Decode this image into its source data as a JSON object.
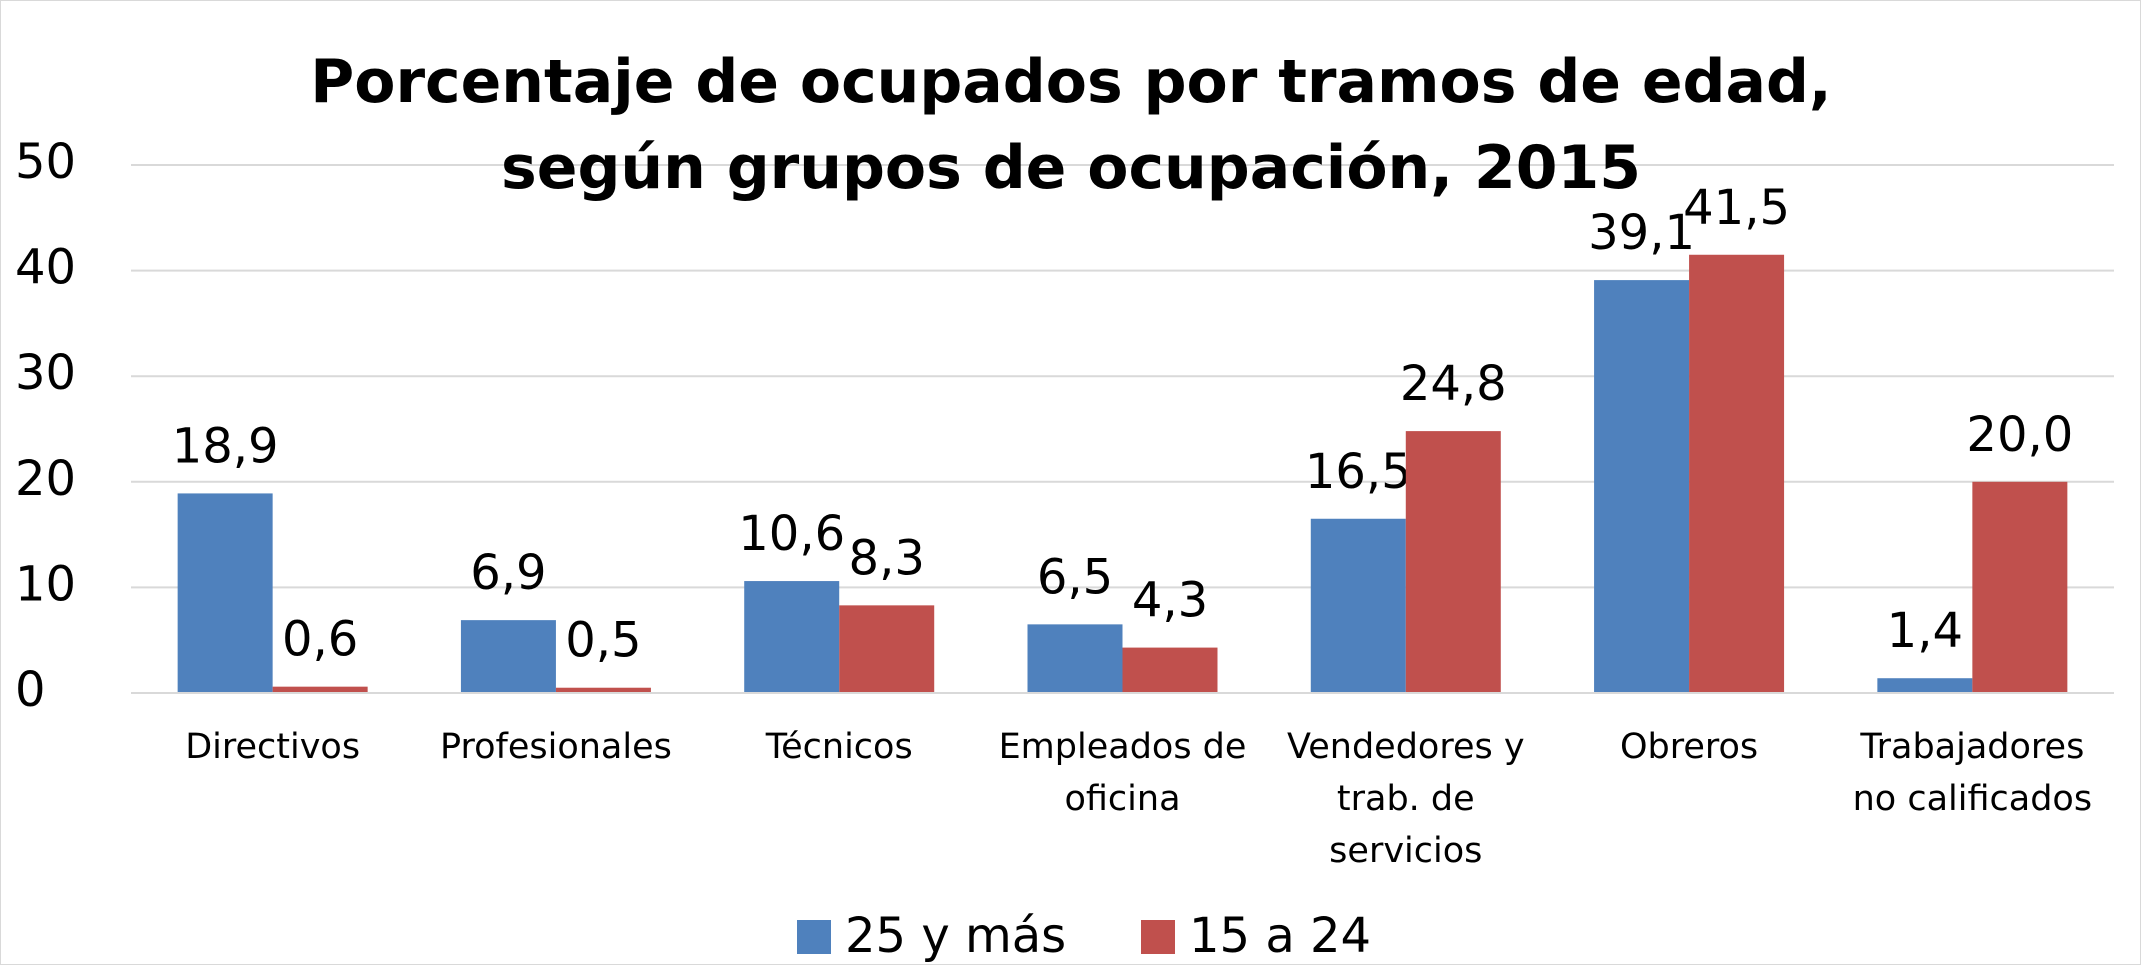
{
  "chart_data": {
    "type": "bar",
    "title": "Porcentaje de ocupados por tramos de edad, según grupos de ocupación, 2015",
    "categories": [
      "Directivos",
      "Profesionales",
      "Técnicos",
      "Empleados de oficina",
      "Vendedores y trab. de servicios",
      "Obreros",
      "Trabajadores no calificados"
    ],
    "series": [
      {
        "name": "25 y más",
        "color": "#4f81bd",
        "values": [
          18.9,
          6.9,
          10.6,
          6.5,
          16.5,
          39.1,
          1.4
        ],
        "value_labels": [
          "18,9",
          "6,9",
          "10,6",
          "6,5",
          "16,5",
          "39,1",
          "1,4"
        ]
      },
      {
        "name": "15 a 24",
        "color": "#c0504d",
        "values": [
          0.6,
          0.5,
          8.3,
          4.3,
          24.8,
          41.5,
          20.0
        ],
        "value_labels": [
          "0,6",
          "0,5",
          "8,3",
          "4,3",
          "24,8",
          "41,5",
          "20,0"
        ]
      }
    ],
    "ylim": [
      0,
      50
    ],
    "yticks": [
      0,
      10,
      20,
      30,
      40,
      50
    ],
    "grid": true,
    "legend": "bottom"
  }
}
